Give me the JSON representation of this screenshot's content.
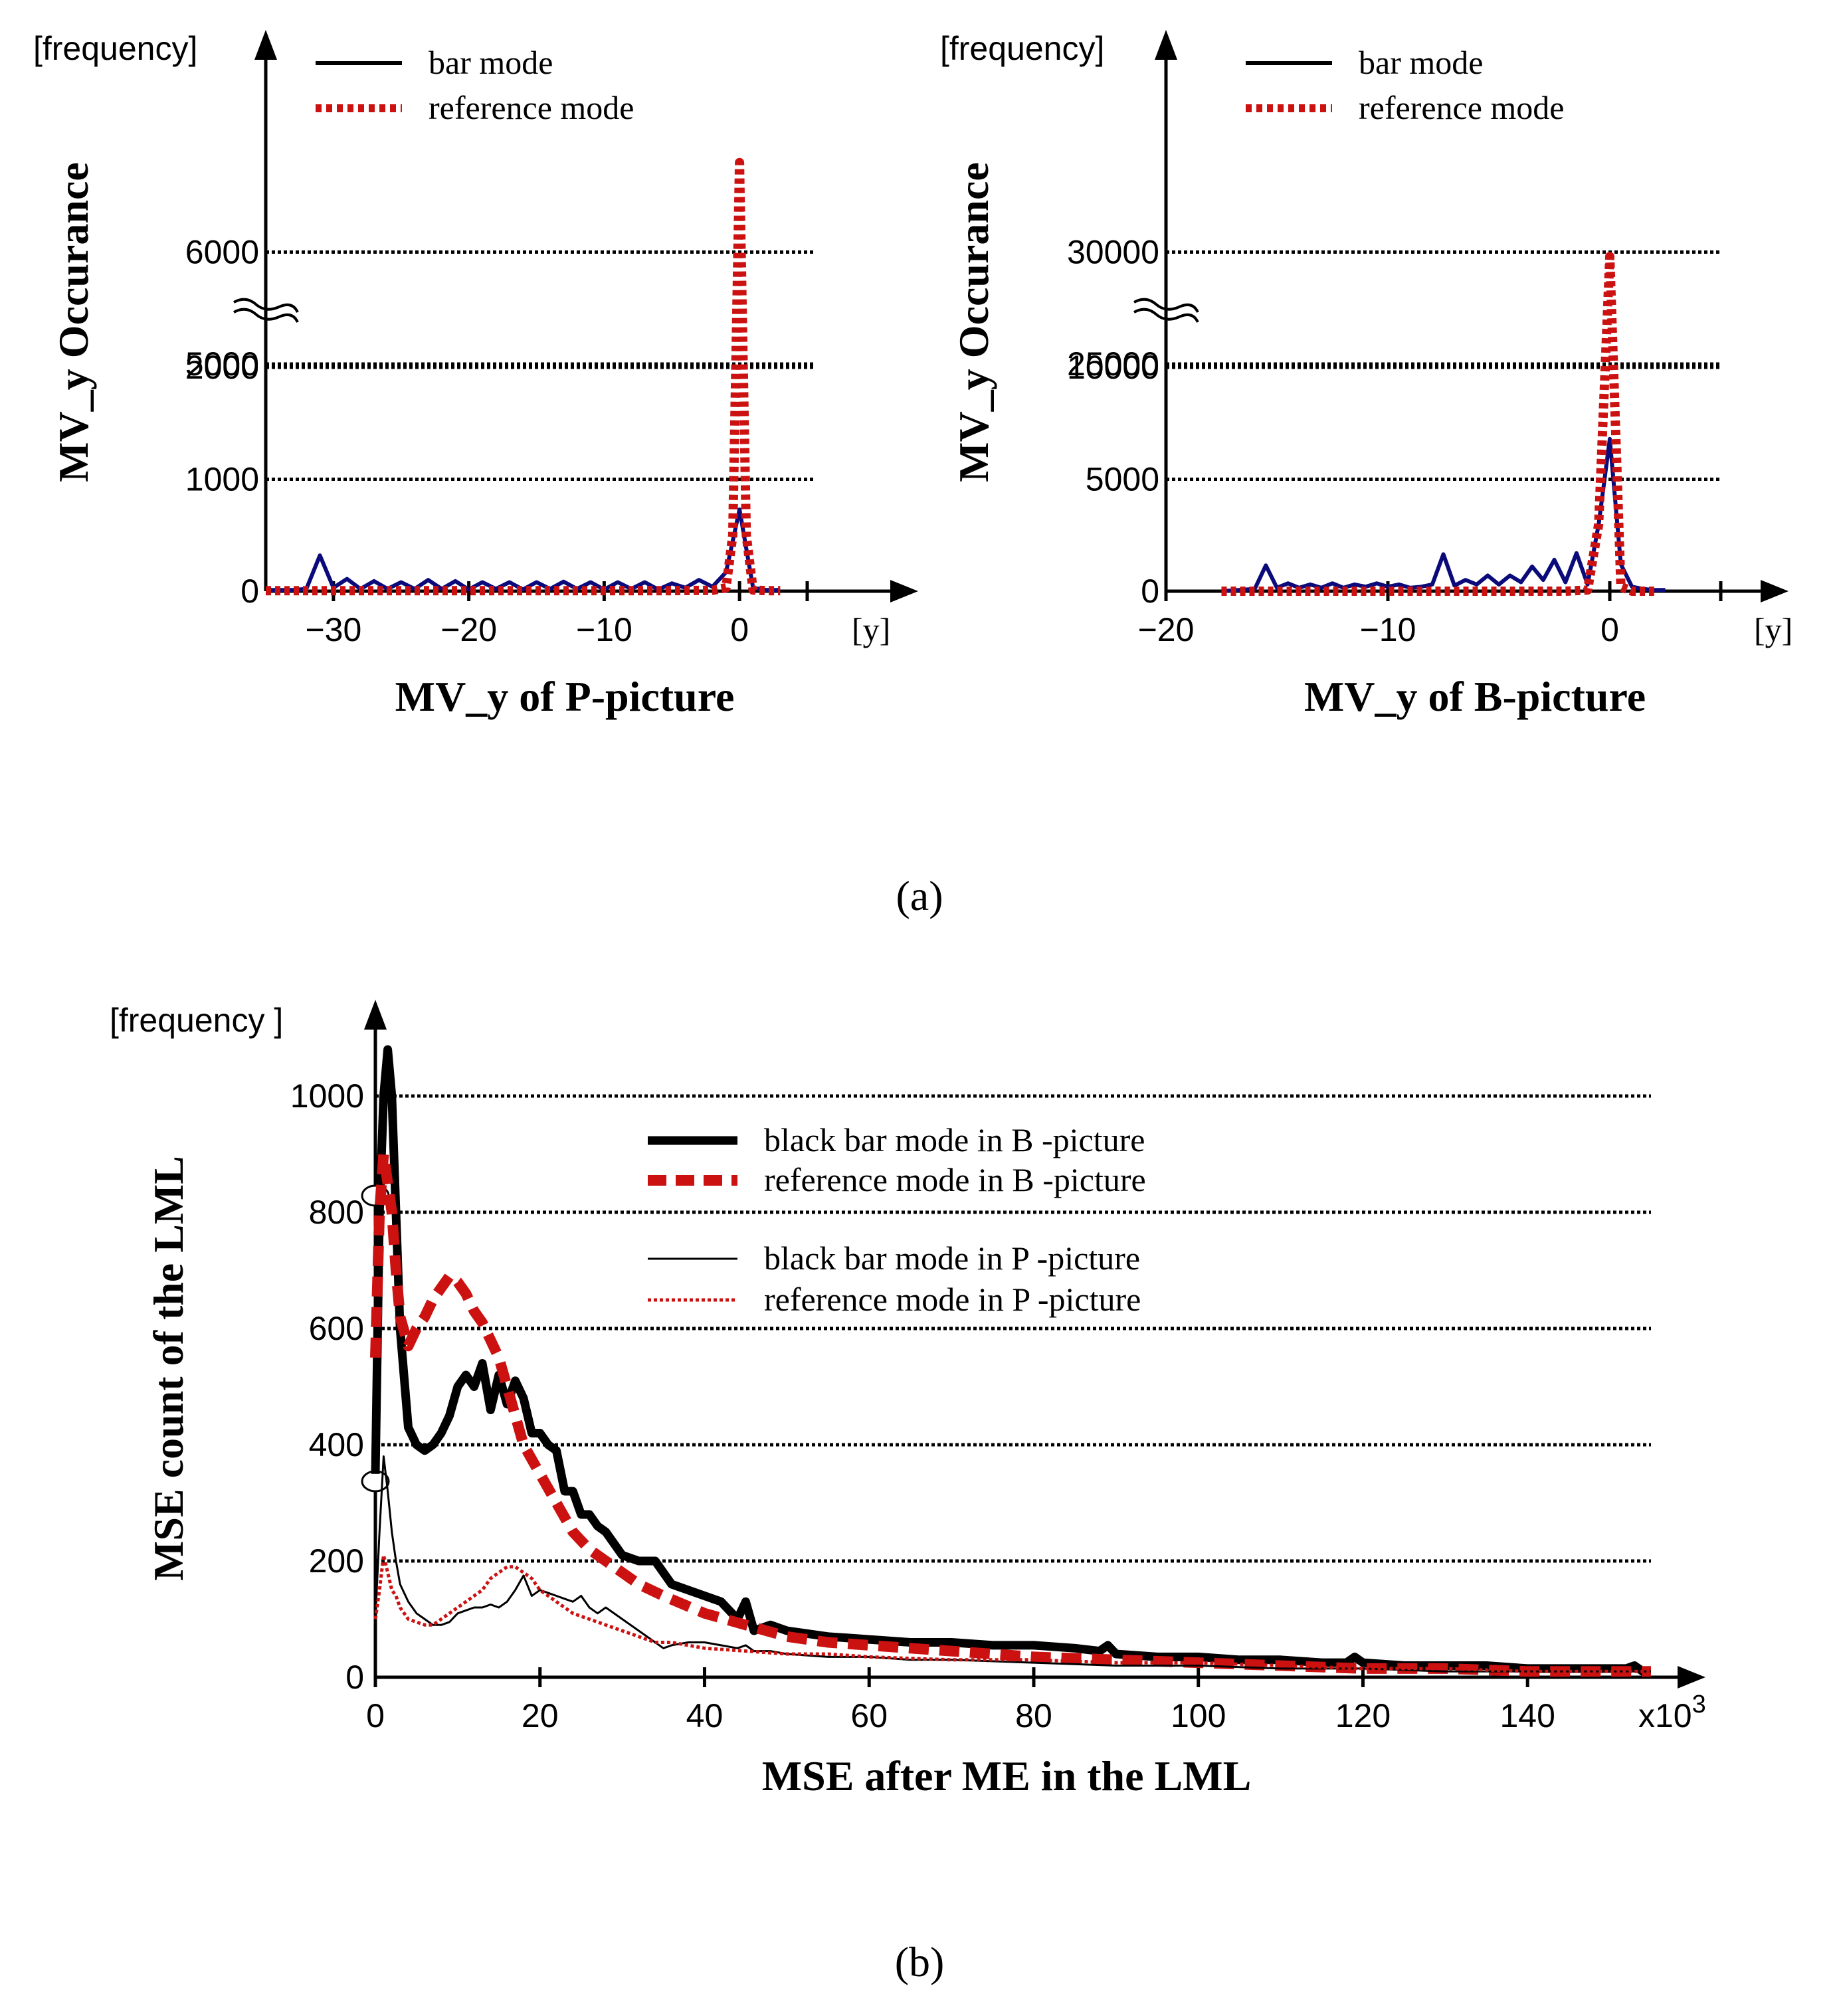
{
  "colors": {
    "bar": "#0a0a7a",
    "bar_legend": "#000000",
    "reference": "#cc1111",
    "black": "#000000"
  },
  "captions": {
    "a": "(a)",
    "b": "(b)"
  },
  "chart_data": [
    {
      "id": "p",
      "type": "line",
      "title": "",
      "xlabel": "MV_y of P-picture",
      "ylabel": "MV_y Occurance",
      "y_unit": "[frequency]",
      "x_unit": "[y]",
      "y_break": true,
      "xlim": [
        -35,
        5
      ],
      "xticks": [
        -30,
        -20,
        -10,
        0,
        5
      ],
      "xtick_labels": [
        "−30",
        "−20",
        "−10",
        "0",
        ""
      ],
      "ytick_labels": [
        "0",
        "1000",
        "2000",
        "5000",
        "6000"
      ],
      "grid": true,
      "legend": [
        "bar mode",
        "reference mode"
      ],
      "series": [
        {
          "name": "bar mode",
          "color": "#0a0a7a",
          "style": "solid",
          "x": [
            -35,
            -33,
            -32,
            -31,
            -30,
            -29,
            -28,
            -27,
            -26,
            -25,
            -24,
            -23,
            -22,
            -21,
            -20,
            -19,
            -18,
            -17,
            -16,
            -15,
            -14,
            -13,
            -12,
            -11,
            -10,
            -9,
            -8,
            -7,
            -6,
            -5,
            -4,
            -3,
            -2,
            -1,
            0,
            1,
            2,
            3
          ],
          "y": [
            10,
            10,
            20,
            320,
            30,
            110,
            20,
            90,
            20,
            80,
            20,
            100,
            20,
            90,
            15,
            80,
            20,
            80,
            15,
            80,
            20,
            85,
            20,
            80,
            15,
            80,
            20,
            80,
            15,
            70,
            30,
            100,
            40,
            170,
            730,
            30,
            10,
            10
          ]
        },
        {
          "name": "reference mode",
          "color": "#cc1111",
          "style": "dotted",
          "x": [
            -35,
            -32,
            -31,
            -30,
            -25,
            -20,
            -15,
            -10,
            -5,
            -2,
            -1,
            -0.5,
            0,
            0.5,
            1,
            2,
            3
          ],
          "y": [
            5,
            5,
            5,
            5,
            5,
            5,
            5,
            5,
            5,
            8,
            30,
            500,
            6800,
            500,
            10,
            5,
            5
          ]
        }
      ]
    },
    {
      "id": "b",
      "type": "line",
      "title": "",
      "xlabel": "MV_y of B-picture",
      "ylabel": "MV_y Occurance",
      "y_unit": "[frequency]",
      "x_unit": "[y]",
      "y_break": true,
      "xlim": [
        -20,
        5
      ],
      "xticks": [
        -20,
        -10,
        0,
        5
      ],
      "xtick_labels": [
        "−20",
        "−10",
        "0",
        ""
      ],
      "ytick_labels": [
        "0",
        "5000",
        "10000",
        "25000",
        "30000"
      ],
      "grid": true,
      "legend": [
        "bar mode",
        "reference mode"
      ],
      "series": [
        {
          "name": "bar mode",
          "color": "#0a0a7a",
          "style": "solid",
          "x": [
            -17.5,
            -16,
            -15.5,
            -15,
            -14.5,
            -14,
            -13.5,
            -13,
            -12.5,
            -12,
            -11.5,
            -11,
            -10.5,
            -10,
            -9.5,
            -9,
            -8.5,
            -8,
            -7.5,
            -7,
            -6.5,
            -6,
            -5.5,
            -5,
            -4.5,
            -4,
            -3.5,
            -3,
            -2.5,
            -2,
            -1.5,
            -1,
            -0.5,
            0,
            0.5,
            1,
            1.5,
            2,
            2.5
          ],
          "y": [
            0,
            100,
            1150,
            150,
            350,
            150,
            300,
            150,
            350,
            150,
            300,
            200,
            350,
            200,
            300,
            150,
            200,
            300,
            1650,
            250,
            500,
            300,
            700,
            300,
            700,
            400,
            1100,
            500,
            1400,
            400,
            1700,
            300,
            3000,
            6800,
            1200,
            200,
            100,
            50,
            50
          ]
        },
        {
          "name": "reference mode",
          "color": "#cc1111",
          "style": "dotted",
          "x": [
            -17.5,
            -15,
            -10,
            -5,
            -2,
            -1,
            -0.5,
            0,
            0.5,
            1,
            2
          ],
          "y": [
            0,
            0,
            0,
            0,
            0,
            50,
            3000,
            29800,
            200,
            0,
            0
          ]
        }
      ]
    },
    {
      "id": "mse",
      "type": "line",
      "title": "",
      "xlabel": "MSE after ME in the LML",
      "ylabel": "MSE count of the LML",
      "y_unit": "[frequency ]",
      "x_unit": "x10",
      "x_unit_sup": "3",
      "xlim": [
        0,
        155
      ],
      "ylim": [
        0,
        1100
      ],
      "xticks": [
        0,
        20,
        40,
        60,
        80,
        100,
        120,
        140
      ],
      "yticks": [
        0,
        200,
        400,
        600,
        800,
        1000
      ],
      "y_break": true,
      "grid": true,
      "legend": [
        "black bar mode in B -picture",
        "reference mode in B -picture",
        "black bar mode in P -picture",
        "reference mode in P -picture"
      ],
      "series": [
        {
          "name": "black bar mode in B -picture",
          "color": "#000000",
          "style": "solid-thick",
          "x": [
            0,
            0.5,
            1,
            1.5,
            2,
            2.5,
            3,
            4,
            5,
            6,
            7,
            8,
            9,
            10,
            11,
            12,
            13,
            14,
            15,
            16,
            17,
            18,
            19,
            20,
            21,
            22,
            23,
            24,
            25,
            26,
            27,
            28,
            30,
            32,
            34,
            36,
            38,
            40,
            42,
            44,
            45,
            46,
            48,
            50,
            55,
            60,
            65,
            70,
            75,
            80,
            85,
            88,
            89,
            90,
            95,
            100,
            105,
            110,
            115,
            118,
            119,
            120,
            125,
            130,
            135,
            140,
            145,
            150,
            152,
            153,
            154,
            155
          ],
          "y": [
            350,
            800,
            1000,
            1080,
            1000,
            800,
            600,
            430,
            400,
            390,
            400,
            420,
            450,
            500,
            520,
            500,
            540,
            460,
            520,
            470,
            510,
            480,
            420,
            420,
            400,
            390,
            320,
            320,
            280,
            280,
            260,
            250,
            210,
            200,
            200,
            160,
            150,
            140,
            130,
            100,
            130,
            80,
            90,
            80,
            70,
            65,
            60,
            60,
            55,
            55,
            50,
            45,
            55,
            40,
            35,
            35,
            30,
            30,
            25,
            25,
            35,
            25,
            20,
            20,
            20,
            15,
            15,
            15,
            15,
            20,
            10,
            10
          ]
        },
        {
          "name": "reference mode in B -picture",
          "color": "#cc1111",
          "style": "dashed-thick",
          "x": [
            0,
            0.5,
            1,
            1.5,
            2,
            2.5,
            3,
            4,
            5,
            6,
            7,
            8,
            9,
            10,
            11,
            12,
            13,
            14,
            15,
            16,
            17,
            18,
            20,
            22,
            24,
            26,
            28,
            30,
            32,
            35,
            40,
            45,
            50,
            55,
            60,
            65,
            70,
            75,
            80,
            90,
            100,
            110,
            120,
            130,
            140,
            150,
            155
          ],
          "y": [
            550,
            800,
            900,
            850,
            800,
            700,
            620,
            570,
            600,
            620,
            650,
            670,
            690,
            680,
            660,
            630,
            610,
            580,
            550,
            500,
            450,
            400,
            350,
            300,
            250,
            220,
            200,
            180,
            160,
            140,
            110,
            90,
            70,
            60,
            55,
            50,
            45,
            40,
            35,
            30,
            25,
            20,
            15,
            15,
            10,
            10,
            10
          ]
        },
        {
          "name": "black bar mode in P -picture",
          "color": "#000000",
          "style": "solid-thin",
          "x": [
            0,
            0.5,
            1,
            1.5,
            2,
            2.5,
            3,
            4,
            5,
            6,
            7,
            8,
            9,
            10,
            11,
            12,
            13,
            14,
            15,
            16,
            17,
            18,
            19,
            20,
            21,
            22,
            23,
            24,
            25,
            26,
            27,
            28,
            30,
            32,
            34,
            35,
            36,
            38,
            40,
            42,
            44,
            45,
            46,
            48,
            50,
            55,
            60,
            65,
            70,
            80,
            90,
            100,
            110,
            120,
            130,
            140,
            150,
            155
          ],
          "y": [
            100,
            250,
            380,
            320,
            250,
            200,
            160,
            130,
            110,
            100,
            90,
            90,
            95,
            110,
            115,
            120,
            120,
            125,
            120,
            130,
            150,
            175,
            140,
            150,
            145,
            140,
            135,
            130,
            140,
            120,
            110,
            120,
            100,
            80,
            60,
            50,
            55,
            60,
            60,
            55,
            50,
            55,
            45,
            45,
            40,
            35,
            35,
            30,
            30,
            25,
            20,
            20,
            15,
            15,
            10,
            10,
            10,
            10
          ]
        },
        {
          "name": "reference mode in P -picture",
          "color": "#cc1111",
          "style": "dotted-thin",
          "x": [
            0,
            0.5,
            1,
            1.5,
            2,
            2.5,
            3,
            4,
            5,
            6,
            7,
            8,
            9,
            10,
            11,
            12,
            13,
            14,
            15,
            16,
            17,
            18,
            19,
            20,
            21,
            22,
            24,
            26,
            28,
            30,
            32,
            34,
            36,
            38,
            40,
            45,
            50,
            55,
            60,
            70,
            80,
            90,
            100,
            110,
            120,
            130,
            140,
            150,
            155
          ],
          "y": [
            100,
            150,
            210,
            180,
            150,
            140,
            120,
            100,
            95,
            90,
            90,
            100,
            110,
            120,
            130,
            140,
            150,
            170,
            180,
            190,
            190,
            180,
            170,
            150,
            140,
            130,
            110,
            100,
            90,
            80,
            70,
            60,
            60,
            55,
            50,
            45,
            40,
            40,
            35,
            30,
            30,
            25,
            25,
            20,
            15,
            15,
            10,
            10,
            10
          ]
        }
      ]
    }
  ]
}
